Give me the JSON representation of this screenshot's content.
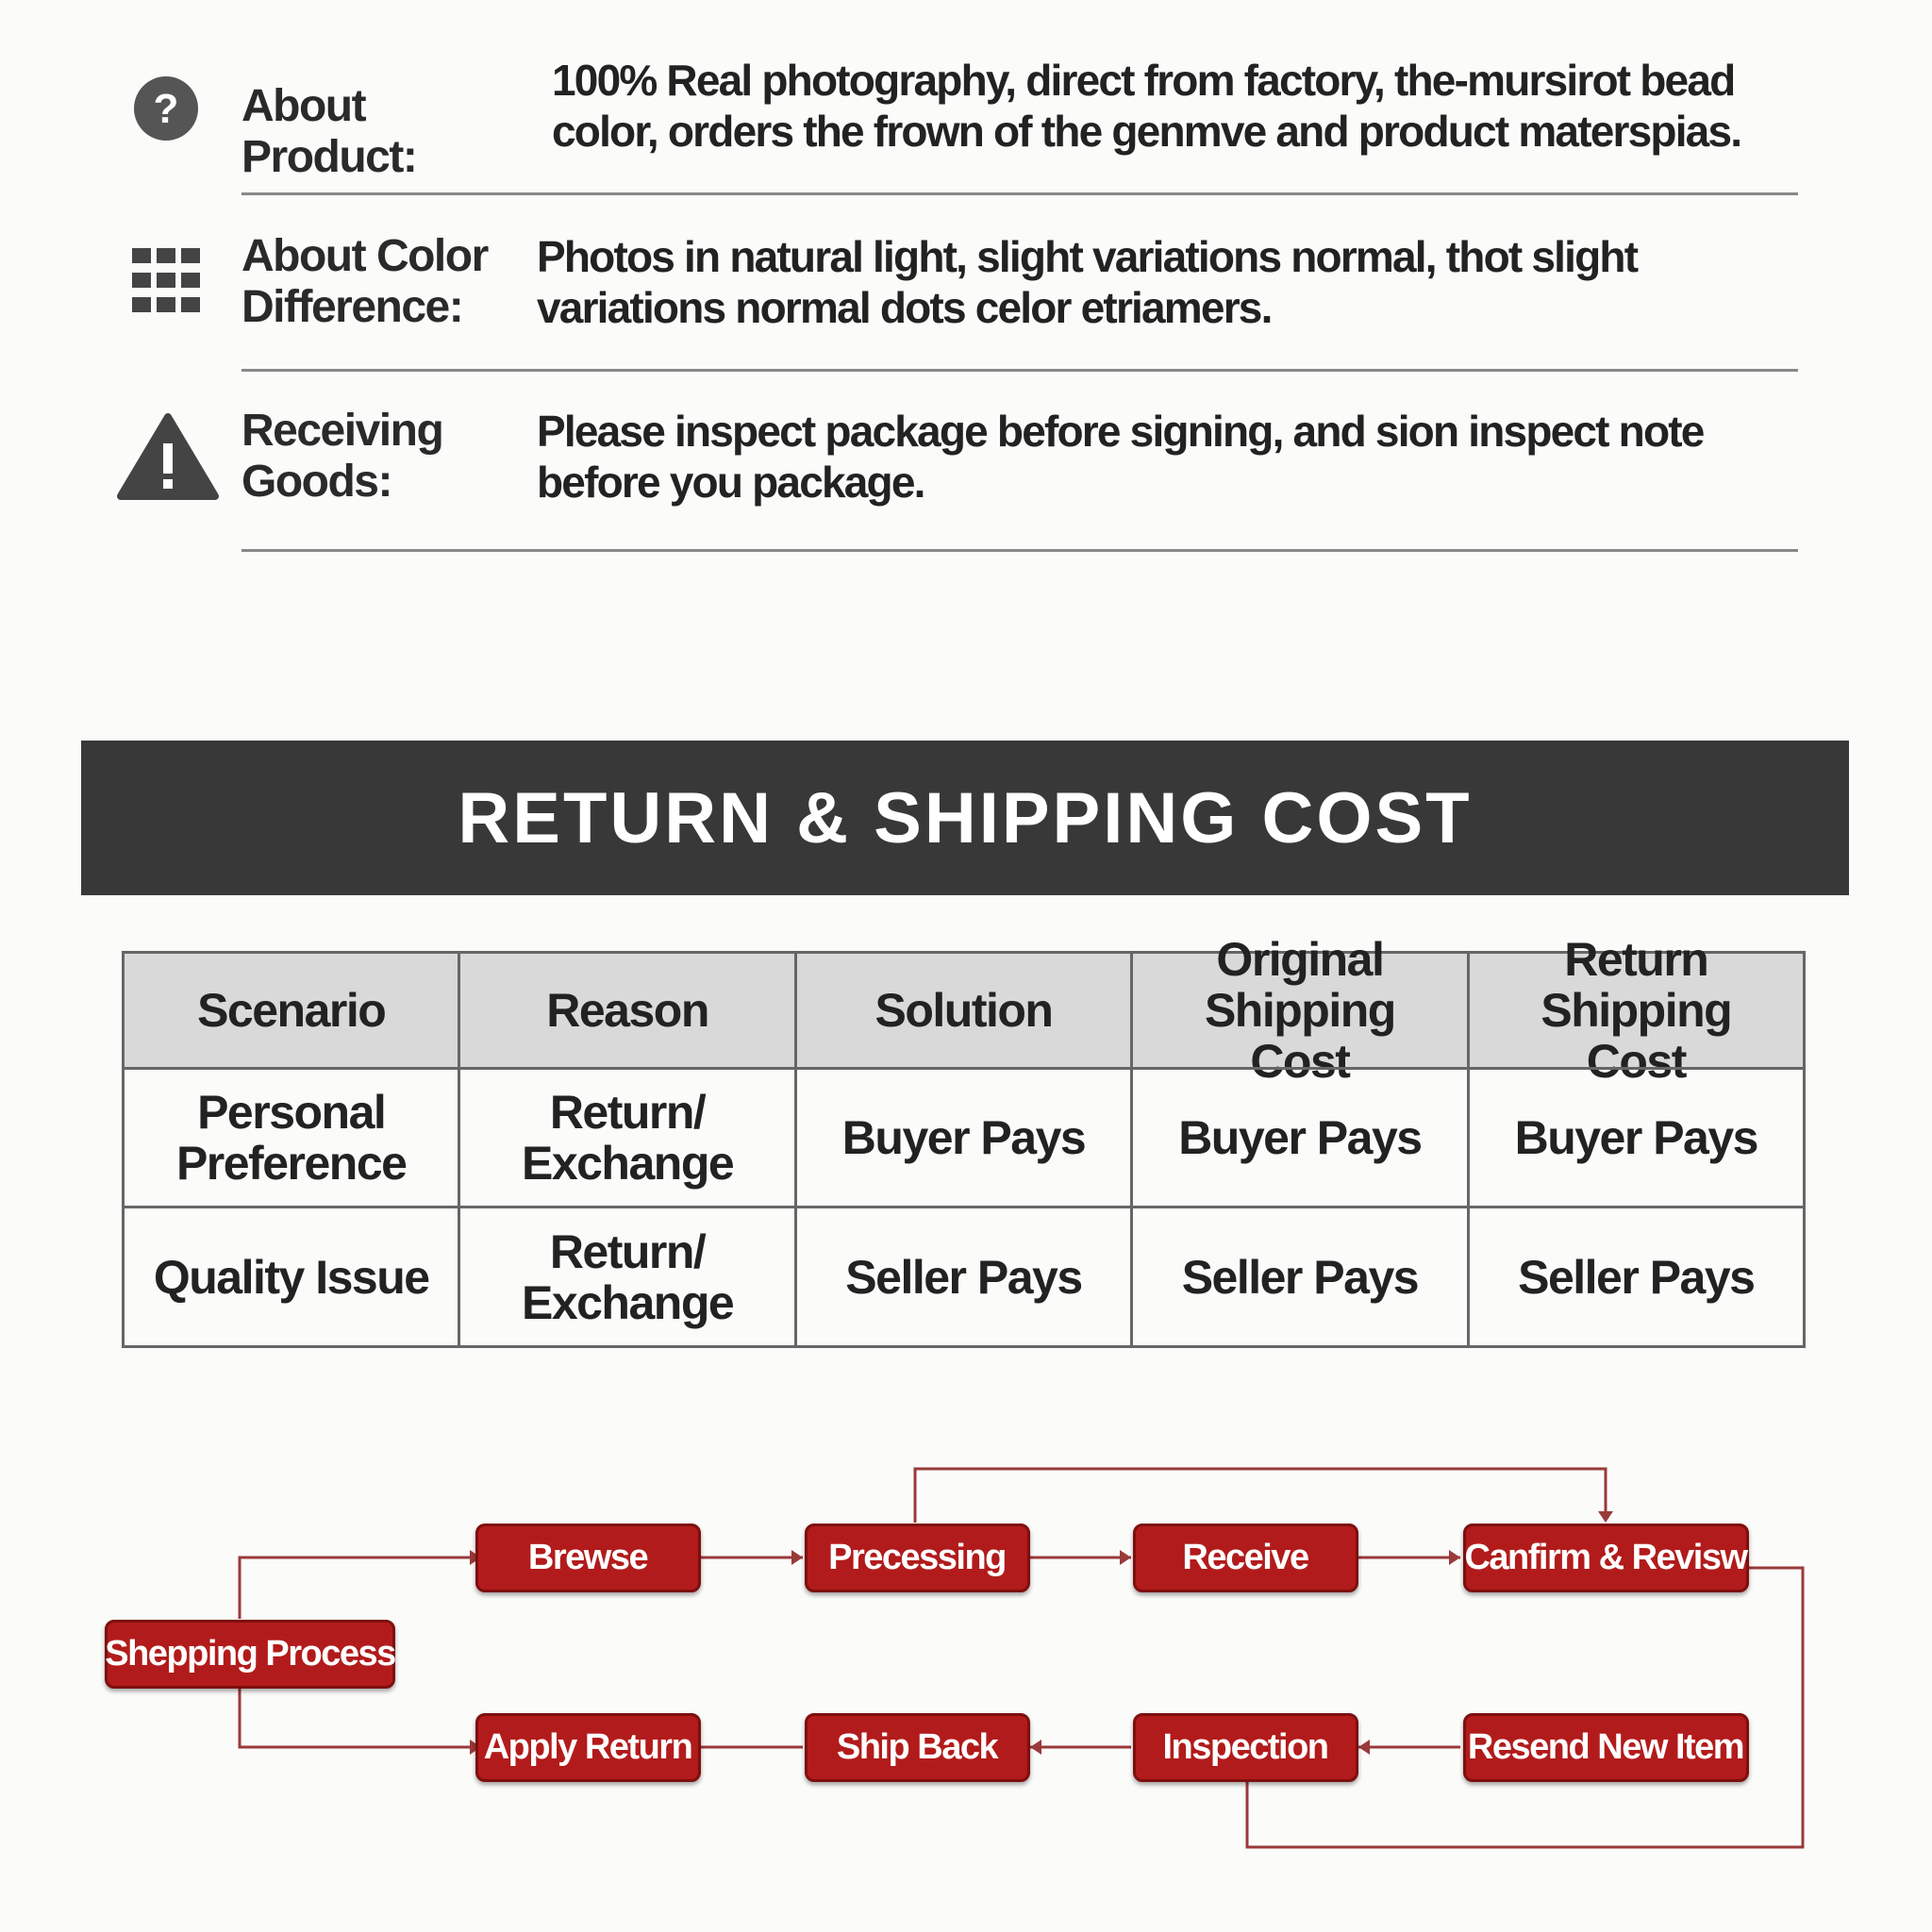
{
  "info": [
    {
      "label": "About Product:",
      "text": "100% Real photography, direct from factory, the-mursirot bead color, orders the frown of the genmve and product materspias."
    },
    {
      "label": "About Color Difference:",
      "text": "Photos in natural light, slight variations normal, thot slight variations normal dots celor etriamers."
    },
    {
      "label": "Receiving Goods:",
      "text": "Please inspect package before signing, and sion inspect note before you package."
    }
  ],
  "banner": {
    "title": "RETURN & SHIPPING COST"
  },
  "table": {
    "headers": [
      "Scenario",
      "Reason",
      "Solution",
      "Original Shipping Cost",
      "Return Shipping Cost"
    ],
    "rows": [
      [
        "Personal Preference",
        "Return/ Exchange",
        "Buyer Pays",
        "Buyer Pays",
        "Buyer Pays"
      ],
      [
        "Quality Issue",
        "Return/ Exchange",
        "Seller Pays",
        "Seller Pays",
        "Seller Pays"
      ]
    ]
  },
  "flow": {
    "start": "Shepping Process",
    "top": [
      "Brewse",
      "Precessing",
      "Receive",
      "Canfirm & Revisw"
    ],
    "bottom": [
      "Apply Return",
      "Ship Back",
      "Inspection",
      "Resend New Item"
    ]
  }
}
